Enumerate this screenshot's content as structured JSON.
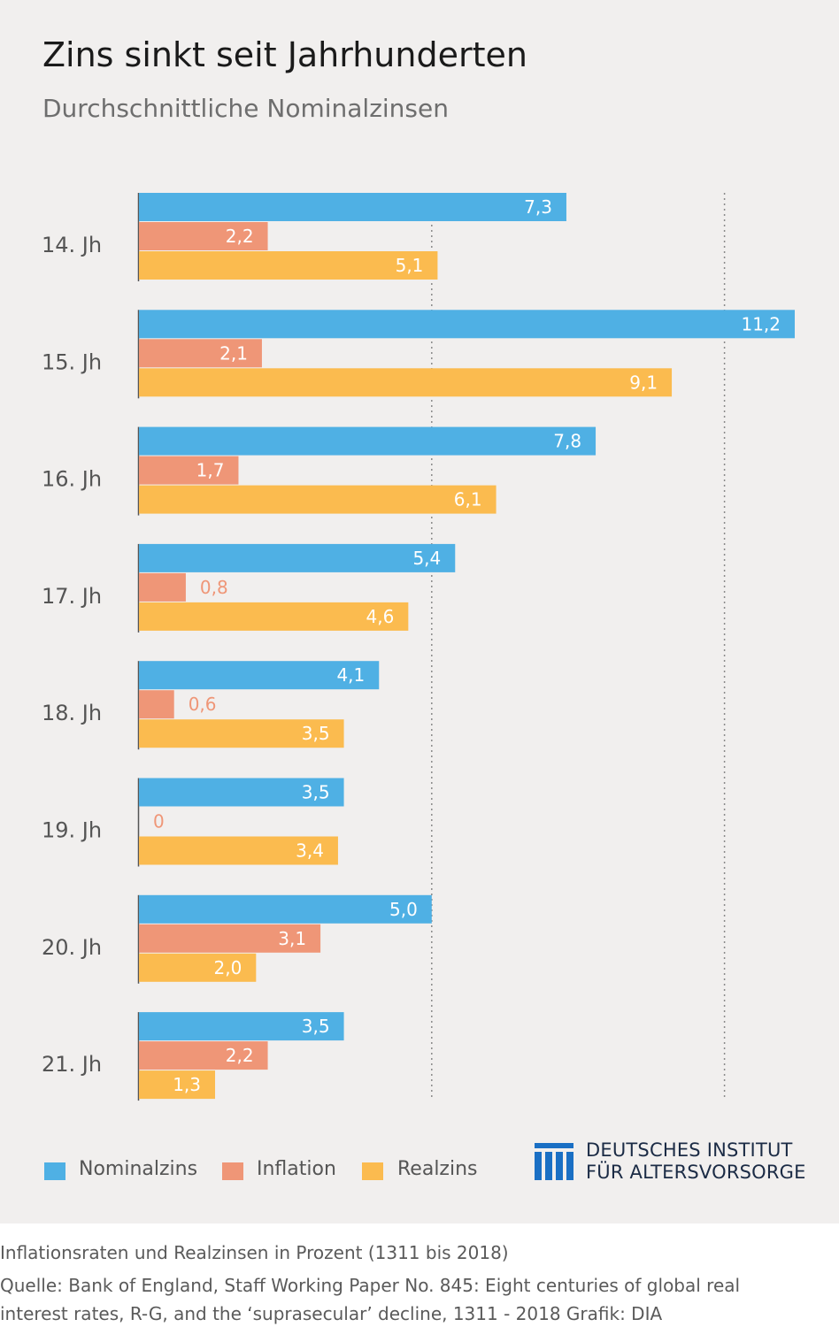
{
  "title": "Zins sinkt seit Jahrhunderten",
  "subtitle": "Durchschnittliche Nominalzinsen",
  "chart_data": {
    "type": "bar",
    "orientation": "horizontal",
    "categories": [
      "14. Jh",
      "15. Jh",
      "16. Jh",
      "17. Jh",
      "18. Jh",
      "19. Jh",
      "20. Jh",
      "21. Jh"
    ],
    "series": [
      {
        "name": "Nominalzins",
        "color": "#4fb0e4",
        "values": [
          7.3,
          11.2,
          7.8,
          5.4,
          4.1,
          3.5,
          5.0,
          3.5
        ],
        "labels": [
          "7,3",
          "11,2",
          "7,8",
          "5,4",
          "4,1",
          "3,5",
          "5,0",
          "3,5"
        ]
      },
      {
        "name": "Inflation",
        "color": "#ef9677",
        "values": [
          2.2,
          2.1,
          1.7,
          0.8,
          0.6,
          0,
          3.1,
          2.2
        ],
        "labels": [
          "2,2",
          "2,1",
          "1,7",
          "0,8",
          "0,6",
          "0",
          "3,1",
          "2,2"
        ]
      },
      {
        "name": "Realzins",
        "color": "#fbbb4f",
        "values": [
          5.1,
          9.1,
          6.1,
          4.6,
          3.5,
          3.4,
          2.0,
          1.3
        ],
        "labels": [
          "5,1",
          "9,1",
          "6,1",
          "4,6",
          "3,5",
          "3,4",
          "2,0",
          "1,3"
        ]
      }
    ],
    "xlim": [
      0,
      11.2
    ],
    "gridlines": [
      5,
      10
    ],
    "grid_style": "dotted",
    "legend_position": "bottom-left"
  },
  "legend": [
    {
      "label": "Nominalzins",
      "color": "#4fb0e4"
    },
    {
      "label": "Inflation",
      "color": "#ef9677"
    },
    {
      "label": "Realzins",
      "color": "#fbbb4f"
    }
  ],
  "logo": {
    "line1": "DEUTSCHES INSTITUT",
    "line2": "FÜR ALTERSVORSORGE",
    "color": "#1a6fc4"
  },
  "footer": {
    "line1": "Inflationsraten und Realzinsen in Prozent (1311 bis 2018)",
    "line2": "Quelle: Bank of England, Staff Working Paper No. 845: Eight centuries of global real",
    "line3": "interest rates, R-G, and the ‘suprasecular’ decline, 1311 - 2018  Grafik: DIA"
  }
}
